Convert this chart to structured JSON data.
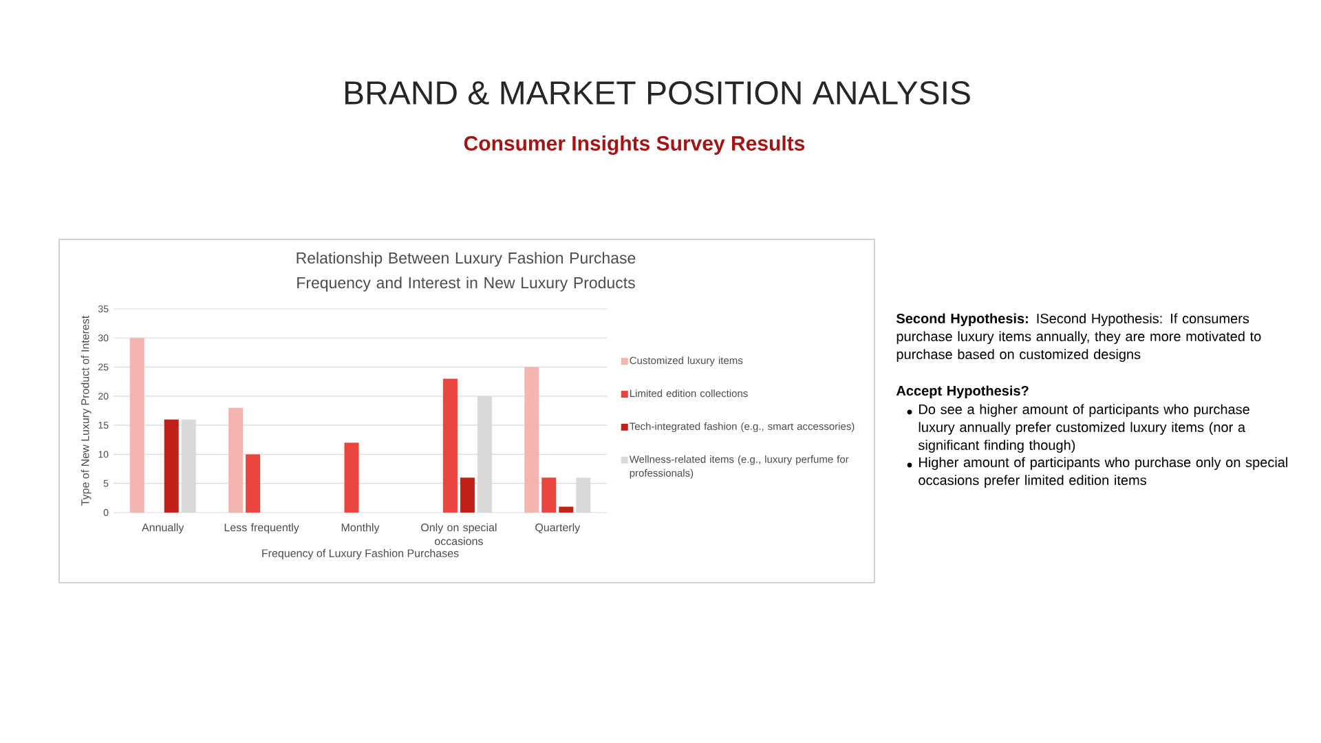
{
  "chart_data": {
    "type": "bar",
    "title": "Relationship Between Luxury Fashion Purchase Frequency and Interest in New Luxury Products",
    "subtitle": "Consumer Insights Survey Results",
    "xlabel": "Frequency of Luxury Fashion Purchases",
    "ylabel": "Type of New Luxury Product of Interest",
    "categories": [
      "Annually",
      "Less frequently",
      "Monthly",
      "Only on special occasions",
      "Quarterly"
    ],
    "series": [
      {
        "name": "Customized luxury items",
        "color": "#f4b5b0",
        "values": [
          30,
          18,
          null,
          null,
          25
        ]
      },
      {
        "name": "Limited edition collections",
        "color": "#e8453c",
        "values": [
          null,
          10,
          12,
          23,
          6
        ]
      },
      {
        "name": "Tech-integrated fashion (e.g., smart accessories)",
        "color": "#c0221a",
        "values": [
          16,
          null,
          null,
          6,
          1
        ]
      },
      {
        "name": "Wellness-related items (e.g., luxury perfume for professionals)",
        "color": "#d9d9d9",
        "values": [
          16,
          null,
          null,
          20,
          6
        ]
      }
    ],
    "ylim": [
      0,
      35
    ],
    "yticks": [
      0,
      5,
      10,
      15,
      20,
      25,
      30,
      35
    ],
    "grid": "y",
    "legend": "right",
    "annotations": [
      "BRAND & MARKET POSITION ANALYSIS",
      "**Second Hypothesis:** ISecond Hypothesis: If consumers purchase luxury items annually, they are more motivated to purchase based on customized designs",
      "Accept Hypothesis?",
      "Do see a higher amount of participants who purchase luxury annually prefer customized luxury items (nor a significant finding though)",
      "Higher amount of participants who purchase only on special occasions prefer limited edition items"
    ]
  }
}
